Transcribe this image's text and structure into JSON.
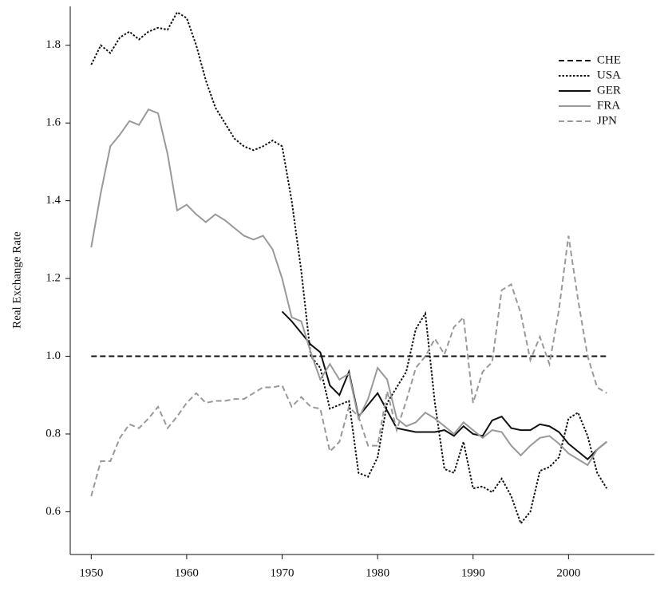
{
  "chart_data": {
    "type": "line",
    "ylabel": "Real Exchange Rate",
    "x": [
      1950,
      1951,
      1952,
      1953,
      1954,
      1955,
      1956,
      1957,
      1958,
      1959,
      1960,
      1961,
      1962,
      1963,
      1964,
      1965,
      1966,
      1967,
      1968,
      1969,
      1970,
      1971,
      1972,
      1973,
      1974,
      1975,
      1976,
      1977,
      1978,
      1979,
      1980,
      1981,
      1982,
      1983,
      1984,
      1985,
      1986,
      1987,
      1988,
      1989,
      1990,
      1991,
      1992,
      1993,
      1994,
      1995,
      1996,
      1997,
      1998,
      1999,
      2000,
      2001,
      2002,
      2003,
      2004
    ],
    "xlim": [
      1947.8,
      2009
    ],
    "xticks": [
      1950,
      1960,
      1970,
      1980,
      1990,
      2000
    ],
    "ylim": [
      0.49,
      1.9
    ],
    "yticks": [
      0.6,
      0.8,
      {
        "value": 1,
        "label": "1.0"
      },
      1.2,
      1.4,
      1.6,
      1.8
    ],
    "legend": "upper right",
    "series": [
      {
        "name": "CHE",
        "color": "#111111",
        "dash": "dashed",
        "values": [
          1,
          1,
          1,
          1,
          1,
          1,
          1,
          1,
          1,
          1,
          1,
          1,
          1,
          1,
          1,
          1,
          1,
          1,
          1,
          1,
          1,
          1,
          1,
          1,
          1,
          1,
          1,
          1,
          1,
          1,
          1,
          1,
          1,
          1,
          1,
          1,
          1,
          1,
          1,
          1,
          1,
          1,
          1,
          1,
          1,
          1,
          1,
          1,
          1,
          1,
          1,
          1,
          1,
          1,
          1
        ]
      },
      {
        "name": "USA",
        "color": "#111111",
        "dash": "dotted",
        "values": [
          1.75,
          1.8,
          1.78,
          1.82,
          1.835,
          1.815,
          1.835,
          1.845,
          1.84,
          1.885,
          1.87,
          1.8,
          1.71,
          1.64,
          1.6,
          1.56,
          1.54,
          1.53,
          1.54,
          1.555,
          1.54,
          1.4,
          1.22,
          1.0,
          0.97,
          0.865,
          0.875,
          0.885,
          0.7,
          0.69,
          0.74,
          0.88,
          0.92,
          0.96,
          1.07,
          1.11,
          0.88,
          0.71,
          0.7,
          0.78,
          0.66,
          0.665,
          0.65,
          0.685,
          0.64,
          0.57,
          0.6,
          0.705,
          0.715,
          0.74,
          0.84,
          0.855,
          0.795,
          0.7,
          0.66
        ]
      },
      {
        "name": "GER",
        "color": "#111111",
        "dash": "solid",
        "values": [
          null,
          null,
          null,
          null,
          null,
          null,
          null,
          null,
          null,
          null,
          null,
          null,
          null,
          null,
          null,
          null,
          null,
          null,
          null,
          null,
          1.115,
          1.09,
          1.06,
          1.03,
          1.01,
          0.925,
          0.9,
          0.96,
          0.845,
          0.875,
          0.905,
          0.86,
          0.815,
          0.81,
          0.805,
          0.805,
          0.805,
          0.81,
          0.795,
          0.82,
          0.8,
          0.795,
          0.835,
          0.845,
          0.815,
          0.81,
          0.81,
          0.825,
          0.82,
          0.805,
          0.775,
          0.755,
          0.735,
          0.76,
          0.78
        ]
      },
      {
        "name": "FRA",
        "color": "#999999",
        "dash": "solid",
        "values": [
          1.28,
          1.42,
          1.54,
          1.57,
          1.605,
          1.595,
          1.635,
          1.625,
          1.52,
          1.375,
          1.39,
          1.365,
          1.345,
          1.365,
          1.35,
          1.33,
          1.31,
          1.3,
          1.31,
          1.275,
          1.2,
          1.1,
          1.09,
          1.01,
          0.94,
          0.98,
          0.94,
          0.955,
          0.84,
          0.89,
          0.97,
          0.94,
          0.84,
          0.82,
          0.83,
          0.855,
          0.84,
          0.82,
          0.8,
          0.83,
          0.81,
          0.79,
          0.81,
          0.805,
          0.77,
          0.745,
          0.77,
          0.79,
          0.795,
          0.775,
          0.75,
          0.735,
          0.72,
          0.76,
          0.78
        ]
      },
      {
        "name": "JPN",
        "color": "#999999",
        "dash": "dashed",
        "values": [
          0.64,
          0.73,
          0.73,
          0.79,
          0.825,
          0.815,
          0.84,
          0.87,
          0.815,
          0.845,
          0.88,
          0.905,
          0.88,
          0.885,
          0.885,
          0.89,
          0.89,
          0.905,
          0.92,
          0.92,
          0.925,
          0.87,
          0.895,
          0.87,
          0.865,
          0.755,
          0.78,
          0.87,
          0.845,
          0.77,
          0.77,
          0.91,
          0.81,
          0.885,
          0.97,
          1.0,
          1.045,
          1.005,
          1.075,
          1.1,
          0.88,
          0.96,
          0.985,
          1.17,
          1.185,
          1.11,
          0.99,
          1.05,
          0.98,
          1.12,
          1.31,
          1.145,
          1.0,
          0.92,
          0.905
        ]
      }
    ]
  }
}
